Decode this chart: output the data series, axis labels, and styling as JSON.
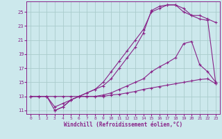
{
  "xlabel": "Windchill (Refroidissement éolien,°C)",
  "bg_color": "#cce8ec",
  "grid_color": "#aacccc",
  "line_color": "#882288",
  "xlim": [
    -0.5,
    23.5
  ],
  "ylim": [
    10.5,
    26.5
  ],
  "xticks": [
    0,
    1,
    2,
    3,
    4,
    5,
    6,
    7,
    8,
    9,
    10,
    11,
    12,
    13,
    14,
    15,
    16,
    17,
    18,
    19,
    20,
    21,
    22,
    23
  ],
  "yticks": [
    11,
    13,
    15,
    17,
    19,
    21,
    23,
    25
  ],
  "series": [
    {
      "x": [
        0,
        1,
        2,
        3,
        4,
        5,
        6,
        7,
        8,
        9,
        10,
        11,
        12,
        13,
        14,
        15,
        16,
        17,
        18,
        19,
        20,
        21,
        22,
        23
      ],
      "y": [
        13,
        13,
        13,
        13,
        13,
        13,
        13,
        13,
        13,
        13,
        13.2,
        13.3,
        13.5,
        13.7,
        14.0,
        14.2,
        14.4,
        14.6,
        14.8,
        15.0,
        15.2,
        15.4,
        15.5,
        14.8
      ]
    },
    {
      "x": [
        0,
        1,
        2,
        3,
        4,
        5,
        6,
        7,
        8,
        9,
        10,
        11,
        12,
        13,
        14,
        15,
        16,
        17,
        18,
        19,
        20,
        21,
        22,
        23
      ],
      "y": [
        13,
        13,
        13,
        11.5,
        12.0,
        12.5,
        13.0,
        13.0,
        13.0,
        13.2,
        13.5,
        14.0,
        14.5,
        15.0,
        15.5,
        16.5,
        17.2,
        17.8,
        18.5,
        20.5,
        20.8,
        17.5,
        16.5,
        15.0
      ]
    },
    {
      "x": [
        0,
        1,
        2,
        3,
        4,
        5,
        6,
        7,
        8,
        9,
        10,
        11,
        12,
        13,
        14,
        15,
        16,
        17,
        18,
        19,
        20,
        21,
        22,
        23
      ],
      "y": [
        13,
        13,
        13,
        11.0,
        11.5,
        12.5,
        13.0,
        13.5,
        14.0,
        15.0,
        16.5,
        18.0,
        19.5,
        21.0,
        22.5,
        25.0,
        25.5,
        26.0,
        26.0,
        25.0,
        24.5,
        24.5,
        24.0,
        23.5
      ]
    },
    {
      "x": [
        3,
        4,
        5,
        6,
        7,
        8,
        9,
        10,
        11,
        12,
        13,
        14,
        15,
        16,
        17,
        18,
        19,
        20,
        21,
        22,
        23
      ],
      "y": [
        11.0,
        11.5,
        12.5,
        13.0,
        13.5,
        14.0,
        14.5,
        15.5,
        17.0,
        18.5,
        20.0,
        22.0,
        25.2,
        25.8,
        26.0,
        26.0,
        25.5,
        24.5,
        24.0,
        23.8,
        14.8
      ]
    }
  ]
}
